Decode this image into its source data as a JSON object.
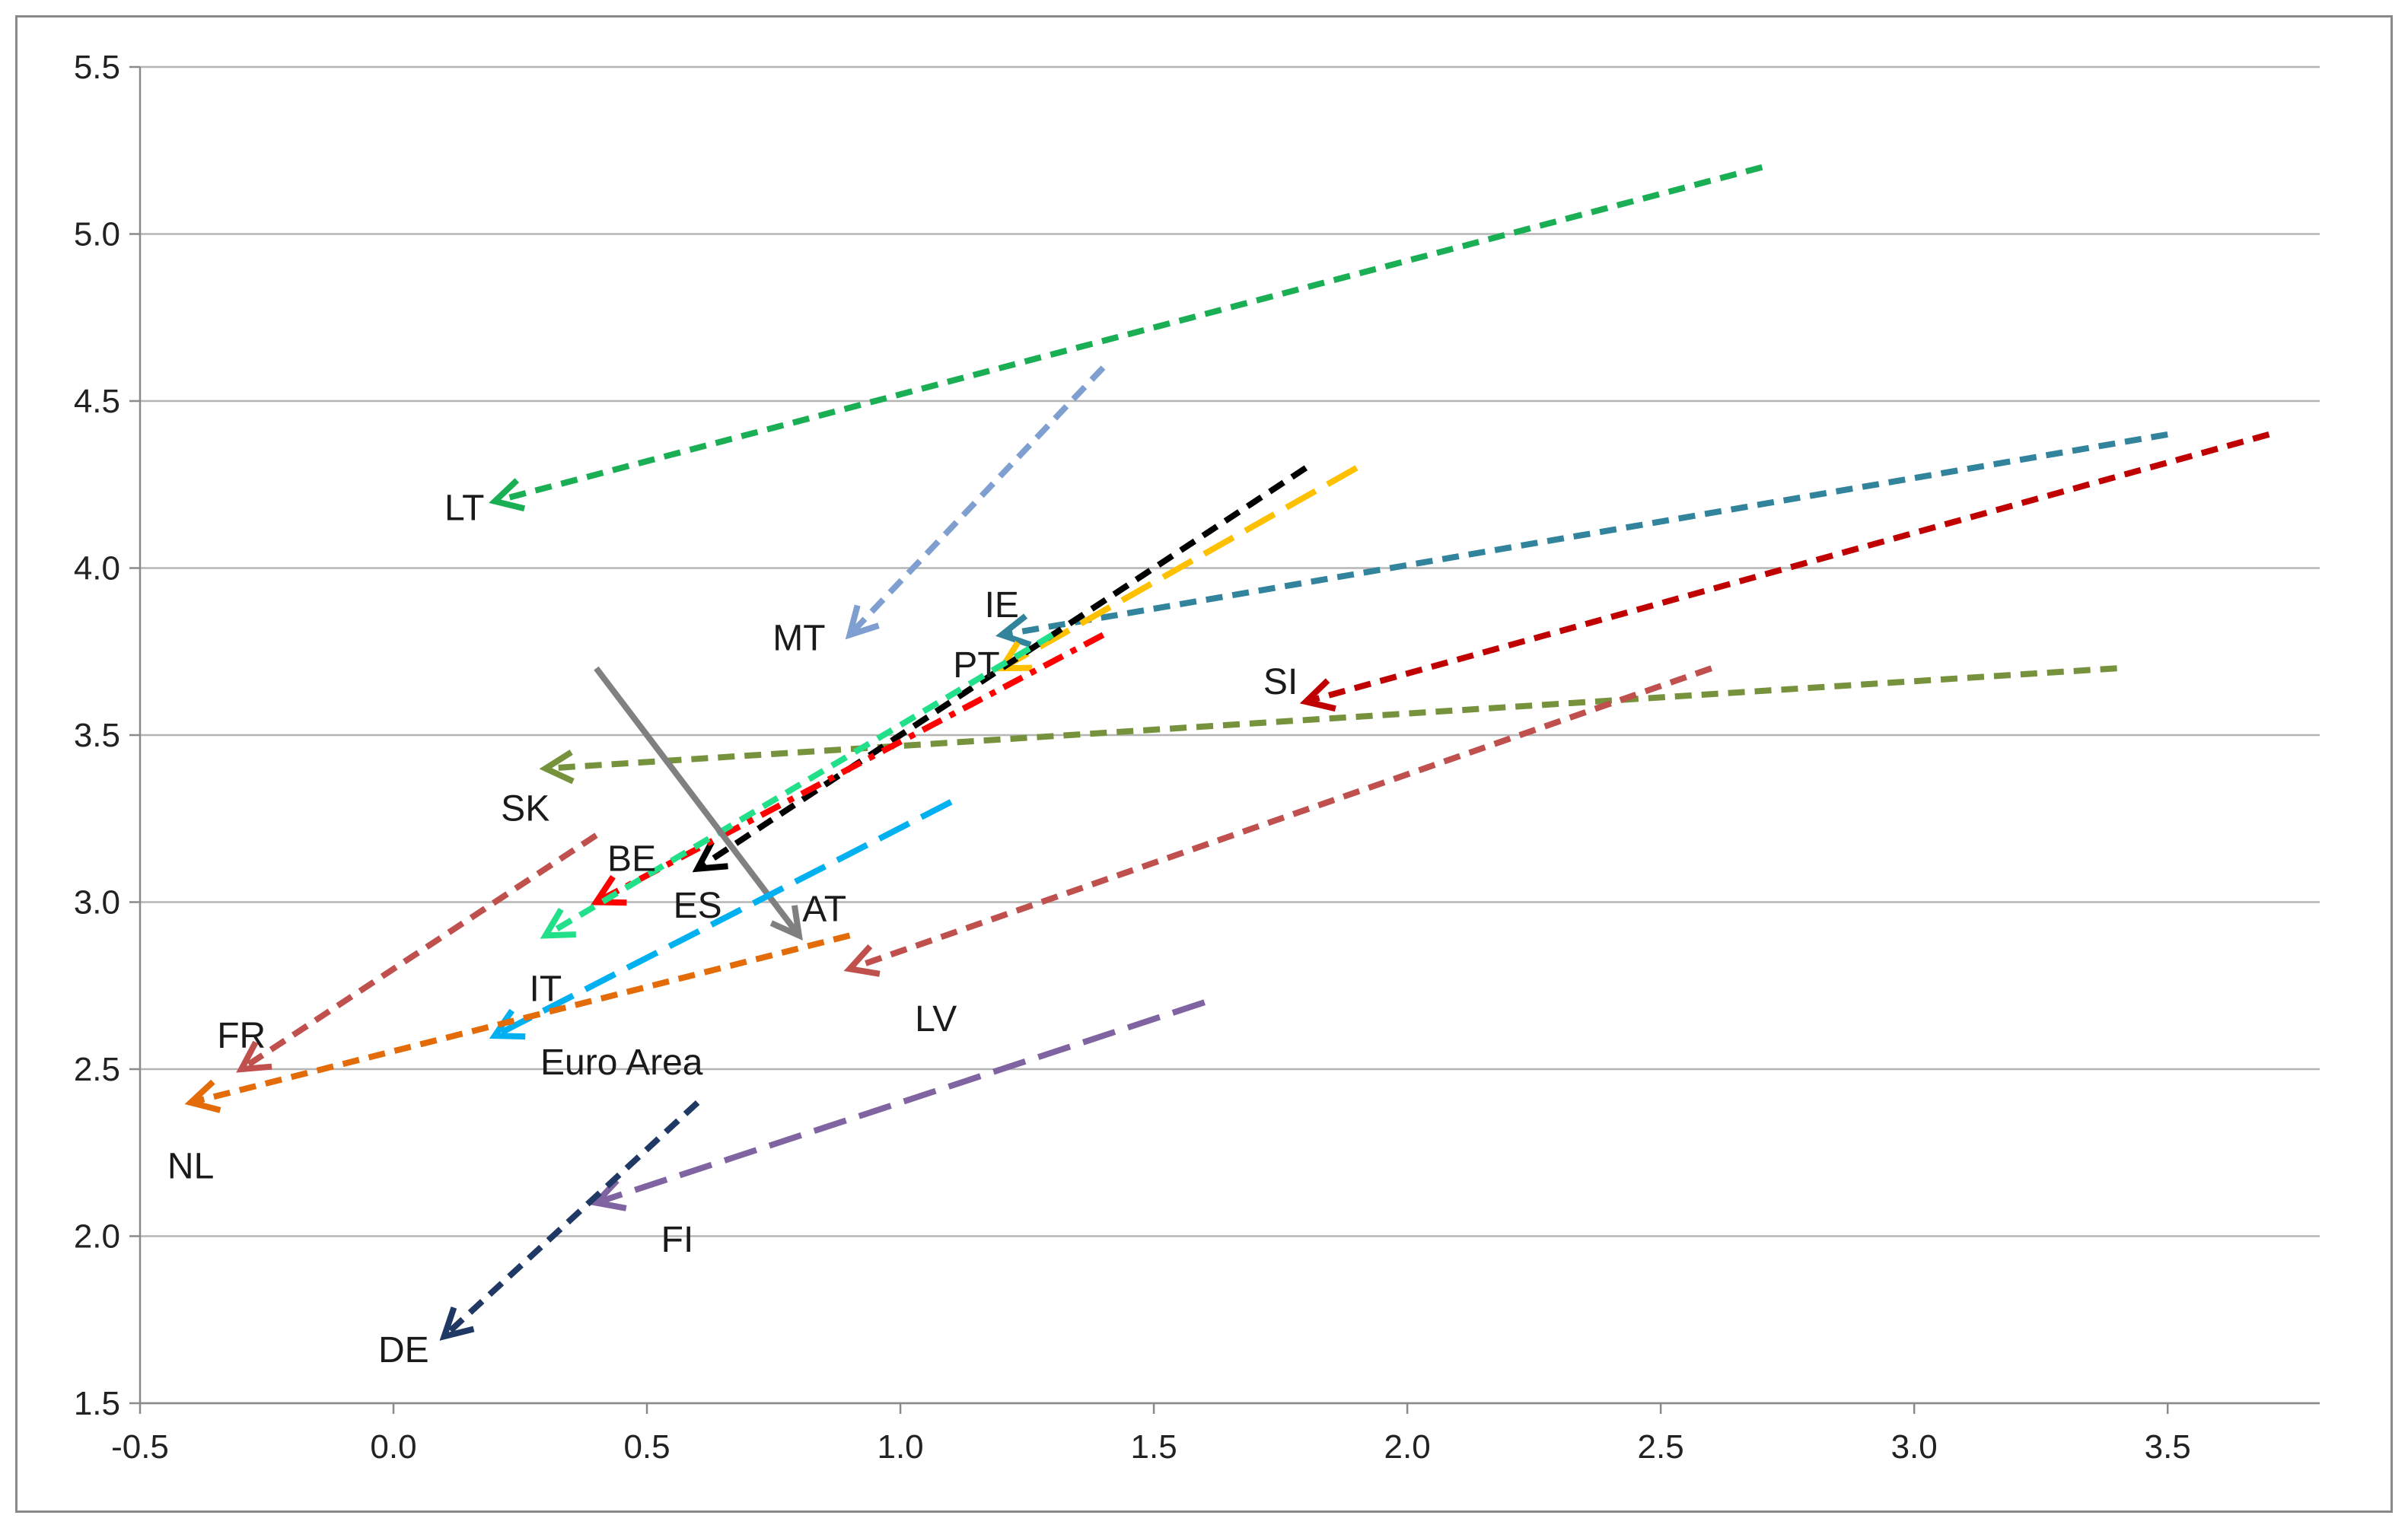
{
  "chart_data": {
    "type": "line",
    "title": "",
    "xlabel": "",
    "ylabel": "",
    "xlim": [
      -0.5,
      3.8
    ],
    "ylim": [
      1.5,
      5.5
    ],
    "x_ticks": [
      "-0.5",
      "0.0",
      "0.5",
      "1.0",
      "1.5",
      "2.0",
      "2.5",
      "3.0",
      "3.5"
    ],
    "y_ticks": [
      "1.5",
      "2.0",
      "2.5",
      "3.0",
      "3.5",
      "4.0",
      "4.5",
      "5.0",
      "5.5"
    ],
    "grid": "horizontal",
    "legend": "none",
    "series": [
      {
        "name": "LT",
        "color": "#1aaf54",
        "dash": "short",
        "from": [
          2.7,
          5.2
        ],
        "to": [
          0.2,
          4.2
        ]
      },
      {
        "name": "MT",
        "color": "#7f9fd0",
        "dash": "short",
        "from": [
          1.4,
          4.6
        ],
        "to": [
          0.9,
          3.8
        ]
      },
      {
        "name": "IE",
        "color": "#31849b",
        "dash": "short",
        "from": [
          3.5,
          4.4
        ],
        "to": [
          1.2,
          3.8
        ]
      },
      {
        "name": "PT",
        "color": "#ffc000",
        "dash": "long",
        "from": [
          1.9,
          4.3
        ],
        "to": [
          1.2,
          3.7
        ]
      },
      {
        "name": "SI",
        "color": "#c00000",
        "dash": "short",
        "from": [
          3.7,
          4.4
        ],
        "to": [
          1.8,
          3.6
        ]
      },
      {
        "name": "SK",
        "color": "#76923c",
        "dash": "short",
        "from": [
          3.4,
          3.7
        ],
        "to": [
          0.3,
          3.4
        ]
      },
      {
        "name": "ES",
        "color": "#000000",
        "dash": "short",
        "from": [
          1.8,
          4.3
        ],
        "to": [
          0.6,
          3.1
        ]
      },
      {
        "name": "BE",
        "color": "#ff0000",
        "dash": "dashdot",
        "from": [
          1.4,
          3.8
        ],
        "to": [
          0.4,
          3.0
        ]
      },
      {
        "name": "IT",
        "color": "#22e08a",
        "dash": "short",
        "from": [
          1.3,
          3.8
        ],
        "to": [
          0.3,
          2.9
        ]
      },
      {
        "name": "AT",
        "color": "#808080",
        "dash": "solid",
        "from": [
          0.4,
          3.7
        ],
        "to": [
          0.8,
          2.9
        ]
      },
      {
        "name": "LV",
        "color": "#c0504d",
        "dash": "short",
        "from": [
          2.6,
          3.7
        ],
        "to": [
          0.9,
          2.8
        ]
      },
      {
        "name": "FR",
        "color": "#c0504d",
        "dash": "short",
        "from": [
          0.4,
          3.2
        ],
        "to": [
          -0.3,
          2.5
        ]
      },
      {
        "name": "Euro Area",
        "color": "#00b0f0",
        "dash": "long",
        "from": [
          1.1,
          3.3
        ],
        "to": [
          0.2,
          2.6
        ]
      },
      {
        "name": "NL",
        "color": "#e36c09",
        "dash": "short",
        "from": [
          0.9,
          2.9
        ],
        "to": [
          -0.4,
          2.4
        ]
      },
      {
        "name": "FI",
        "color": "#8064a2",
        "dash": "long",
        "from": [
          1.6,
          2.7
        ],
        "to": [
          0.4,
          2.1
        ]
      },
      {
        "name": "DE",
        "color": "#1f3864",
        "dash": "short",
        "from": [
          0.6,
          2.4
        ],
        "to": [
          0.1,
          1.7
        ]
      }
    ],
    "labels": [
      {
        "text": "LT",
        "x": 0.14,
        "y": 4.18
      },
      {
        "text": "MT",
        "x": 0.8,
        "y": 3.79
      },
      {
        "text": "IE",
        "x": 1.2,
        "y": 3.89
      },
      {
        "text": "PT",
        "x": 1.15,
        "y": 3.71
      },
      {
        "text": "SI",
        "x": 1.75,
        "y": 3.66
      },
      {
        "text": "SK",
        "x": 0.26,
        "y": 3.28
      },
      {
        "text": "BE",
        "x": 0.47,
        "y": 3.13
      },
      {
        "text": "ES",
        "x": 0.6,
        "y": 2.99
      },
      {
        "text": "AT",
        "x": 0.85,
        "y": 2.98
      },
      {
        "text": "IT",
        "x": 0.3,
        "y": 2.74
      },
      {
        "text": "LV",
        "x": 1.07,
        "y": 2.65
      },
      {
        "text": "FR",
        "x": -0.3,
        "y": 2.6
      },
      {
        "text": "Euro Area",
        "x": 0.45,
        "y": 2.52
      },
      {
        "text": "NL",
        "x": -0.4,
        "y": 2.21
      },
      {
        "text": "FI",
        "x": 0.56,
        "y": 1.99
      },
      {
        "text": "DE",
        "x": 0.02,
        "y": 1.66
      }
    ]
  }
}
